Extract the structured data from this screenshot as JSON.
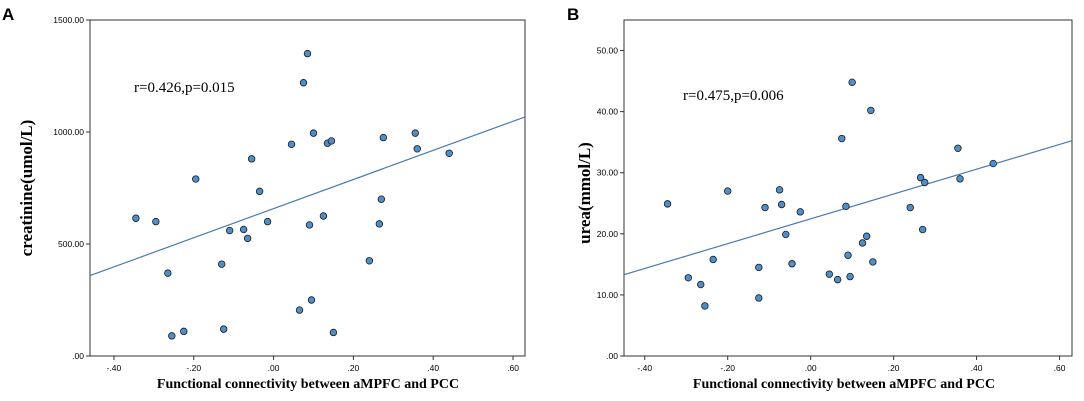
{
  "chart_data": [
    {
      "panel_label": "A",
      "type": "scatter",
      "xlabel": "Functional connectivity between aMPFC and PCC",
      "ylabel": "creatinine(umol/L)",
      "annotation": "r=0.426,p=0.015",
      "xlim": [
        -0.46,
        0.63
      ],
      "ylim": [
        0,
        1500
      ],
      "x_ticks": [
        -0.4,
        -0.2,
        0.0,
        0.2,
        0.4,
        0.6
      ],
      "x_tick_labels": [
        "-.40",
        "-.20",
        ".00",
        ".20",
        ".40",
        ".60"
      ],
      "y_ticks": [
        0,
        500,
        1000,
        1500
      ],
      "y_tick_labels": [
        ".00",
        "500.00",
        "1000.00",
        "1500.00"
      ],
      "fit_line": {
        "intercept": 658,
        "slope": 650
      },
      "points": [
        {
          "x": -0.345,
          "y": 615
        },
        {
          "x": -0.295,
          "y": 600
        },
        {
          "x": -0.265,
          "y": 370
        },
        {
          "x": -0.255,
          "y": 90
        },
        {
          "x": -0.225,
          "y": 110
        },
        {
          "x": -0.195,
          "y": 790
        },
        {
          "x": -0.13,
          "y": 410
        },
        {
          "x": -0.125,
          "y": 120
        },
        {
          "x": -0.11,
          "y": 560
        },
        {
          "x": -0.075,
          "y": 565
        },
        {
          "x": -0.065,
          "y": 525
        },
        {
          "x": -0.055,
          "y": 880
        },
        {
          "x": -0.035,
          "y": 735
        },
        {
          "x": -0.015,
          "y": 600
        },
        {
          "x": 0.045,
          "y": 945
        },
        {
          "x": 0.065,
          "y": 205
        },
        {
          "x": 0.075,
          "y": 1220
        },
        {
          "x": 0.085,
          "y": 1350
        },
        {
          "x": 0.09,
          "y": 585
        },
        {
          "x": 0.095,
          "y": 250
        },
        {
          "x": 0.1,
          "y": 995
        },
        {
          "x": 0.125,
          "y": 625
        },
        {
          "x": 0.135,
          "y": 950
        },
        {
          "x": 0.145,
          "y": 960
        },
        {
          "x": 0.15,
          "y": 105
        },
        {
          "x": 0.24,
          "y": 425
        },
        {
          "x": 0.265,
          "y": 590
        },
        {
          "x": 0.27,
          "y": 700
        },
        {
          "x": 0.275,
          "y": 975
        },
        {
          "x": 0.355,
          "y": 995
        },
        {
          "x": 0.36,
          "y": 925
        },
        {
          "x": 0.44,
          "y": 905
        }
      ]
    },
    {
      "panel_label": "B",
      "type": "scatter",
      "xlabel": "Functional connectivity between aMPFC and PCC",
      "ylabel": "urea(mmol/L)",
      "annotation": "r=0.475,p=0.006",
      "xlim": [
        -0.45,
        0.63
      ],
      "ylim": [
        0,
        55
      ],
      "x_ticks": [
        -0.4,
        -0.2,
        0.0,
        0.2,
        0.4,
        0.6
      ],
      "x_tick_labels": [
        "-.40",
        "-.20",
        ".00",
        ".20",
        ".40",
        ".60"
      ],
      "y_ticks": [
        0,
        10,
        20,
        30,
        40,
        50
      ],
      "y_tick_labels": [
        ".00",
        "10.00",
        "20.00",
        "30.00",
        "40.00",
        "50.00"
      ],
      "fit_line": {
        "intercept": 22.45,
        "slope": 20.3
      },
      "points": [
        {
          "x": -0.345,
          "y": 24.9
        },
        {
          "x": -0.295,
          "y": 12.8
        },
        {
          "x": -0.265,
          "y": 11.7
        },
        {
          "x": -0.255,
          "y": 8.2
        },
        {
          "x": -0.235,
          "y": 15.8
        },
        {
          "x": -0.2,
          "y": 27.0
        },
        {
          "x": -0.125,
          "y": 14.5
        },
        {
          "x": -0.125,
          "y": 9.5
        },
        {
          "x": -0.11,
          "y": 24.3
        },
        {
          "x": -0.075,
          "y": 27.2
        },
        {
          "x": -0.07,
          "y": 24.8
        },
        {
          "x": -0.06,
          "y": 19.9
        },
        {
          "x": -0.045,
          "y": 15.1
        },
        {
          "x": -0.025,
          "y": 23.6
        },
        {
          "x": 0.045,
          "y": 13.4
        },
        {
          "x": 0.065,
          "y": 12.5
        },
        {
          "x": 0.075,
          "y": 35.6
        },
        {
          "x": 0.085,
          "y": 24.5
        },
        {
          "x": 0.09,
          "y": 16.5
        },
        {
          "x": 0.095,
          "y": 13.0
        },
        {
          "x": 0.1,
          "y": 44.8
        },
        {
          "x": 0.125,
          "y": 18.5
        },
        {
          "x": 0.135,
          "y": 19.6
        },
        {
          "x": 0.145,
          "y": 40.2
        },
        {
          "x": 0.15,
          "y": 15.4
        },
        {
          "x": 0.24,
          "y": 24.3
        },
        {
          "x": 0.265,
          "y": 29.2
        },
        {
          "x": 0.27,
          "y": 20.7
        },
        {
          "x": 0.275,
          "y": 28.4
        },
        {
          "x": 0.355,
          "y": 34.0
        },
        {
          "x": 0.36,
          "y": 29.0
        },
        {
          "x": 0.44,
          "y": 31.5
        }
      ]
    }
  ],
  "colors": {
    "point_fill": "#4f8fc9",
    "point_stroke": "#1c1c1c",
    "fit_line": "#4a78b5",
    "frame": "#333333"
  }
}
